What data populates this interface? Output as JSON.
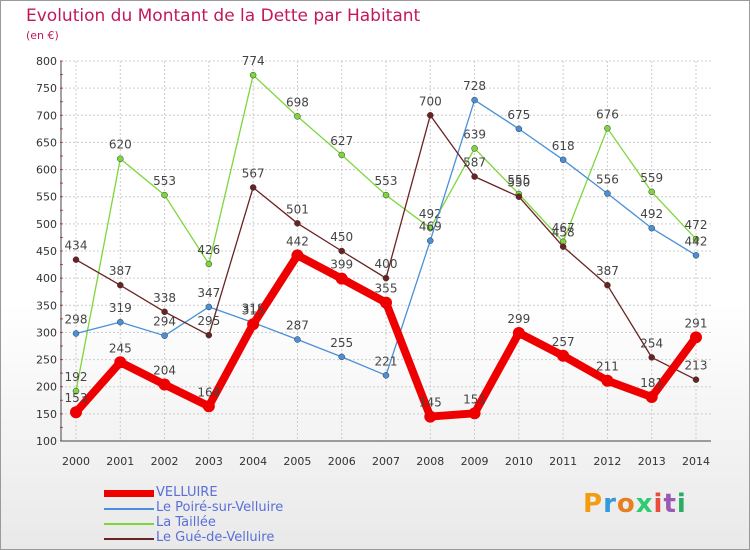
{
  "title": "Evolution du Montant de la Dette par Habitant",
  "subtitle": "(en €)",
  "logo": {
    "letters": [
      "P",
      "r",
      "o",
      "x",
      "i",
      "t",
      "i"
    ],
    "colors": [
      "#f39c12",
      "#3498db",
      "#e67e22",
      "#2ecc71",
      "#e74c3c",
      "#9b59b6",
      "#27ae60"
    ]
  },
  "chart_data": {
    "type": "line",
    "x": [
      "2000",
      "2001",
      "2002",
      "2003",
      "2004",
      "2005",
      "2006",
      "2007",
      "2008",
      "2009",
      "2010",
      "2011",
      "2012",
      "2013",
      "2014"
    ],
    "yticks": [
      100,
      150,
      200,
      250,
      300,
      350,
      400,
      450,
      500,
      550,
      600,
      650,
      700,
      750,
      800
    ],
    "ylim": [
      100,
      800
    ],
    "grid": true,
    "legend_position": "bottom-left",
    "series": [
      {
        "name": "La Taillée",
        "color": "#7dd63a",
        "values": [
          192,
          620,
          553,
          426,
          774,
          698,
          627,
          553,
          492,
          639,
          555,
          467,
          676,
          559,
          472
        ],
        "labels": [
          "192",
          "620",
          "553",
          "426",
          "774",
          "698",
          "627",
          "553",
          "492",
          "639",
          "555",
          "467",
          "676",
          "559",
          "472"
        ]
      },
      {
        "name": "Le Poiré-sur-Velluire",
        "color": "#4a90d9",
        "values": [
          298,
          319,
          294,
          347,
          318,
          287,
          255,
          221,
          469,
          728,
          675,
          618,
          556,
          492,
          442
        ],
        "labels": [
          "298",
          "319",
          "294",
          "347",
          "318",
          "287",
          "255",
          "221",
          "469",
          "728",
          "675",
          "618",
          "556",
          "492",
          "442"
        ]
      },
      {
        "name": "Le Gué-de-Velluire",
        "color": "#6b2222",
        "values": [
          434,
          387,
          338,
          295,
          567,
          501,
          450,
          400,
          700,
          587,
          550,
          458,
          387,
          254,
          213
        ],
        "labels": [
          "434",
          "387",
          "338",
          "295",
          "567",
          "501",
          "450",
          "400",
          "700",
          "587",
          "550",
          "458",
          "387",
          "254",
          "213"
        ]
      },
      {
        "name": "VELLUIRE",
        "color": "#ee0000",
        "values": [
          153,
          245,
          204,
          164,
          315,
          442,
          399,
          355,
          145,
          151,
          299,
          257,
          211,
          181,
          291
        ],
        "labels": [
          "153",
          "245",
          "204",
          "164",
          "315",
          "442",
          "399",
          "355",
          "145",
          "151",
          "299",
          "257",
          "211",
          "181",
          "291"
        ]
      }
    ],
    "legend": [
      "VELLUIRE",
      "Le Poiré-sur-Velluire",
      "La Taillée",
      "Le Gué-de-Velluire"
    ]
  }
}
